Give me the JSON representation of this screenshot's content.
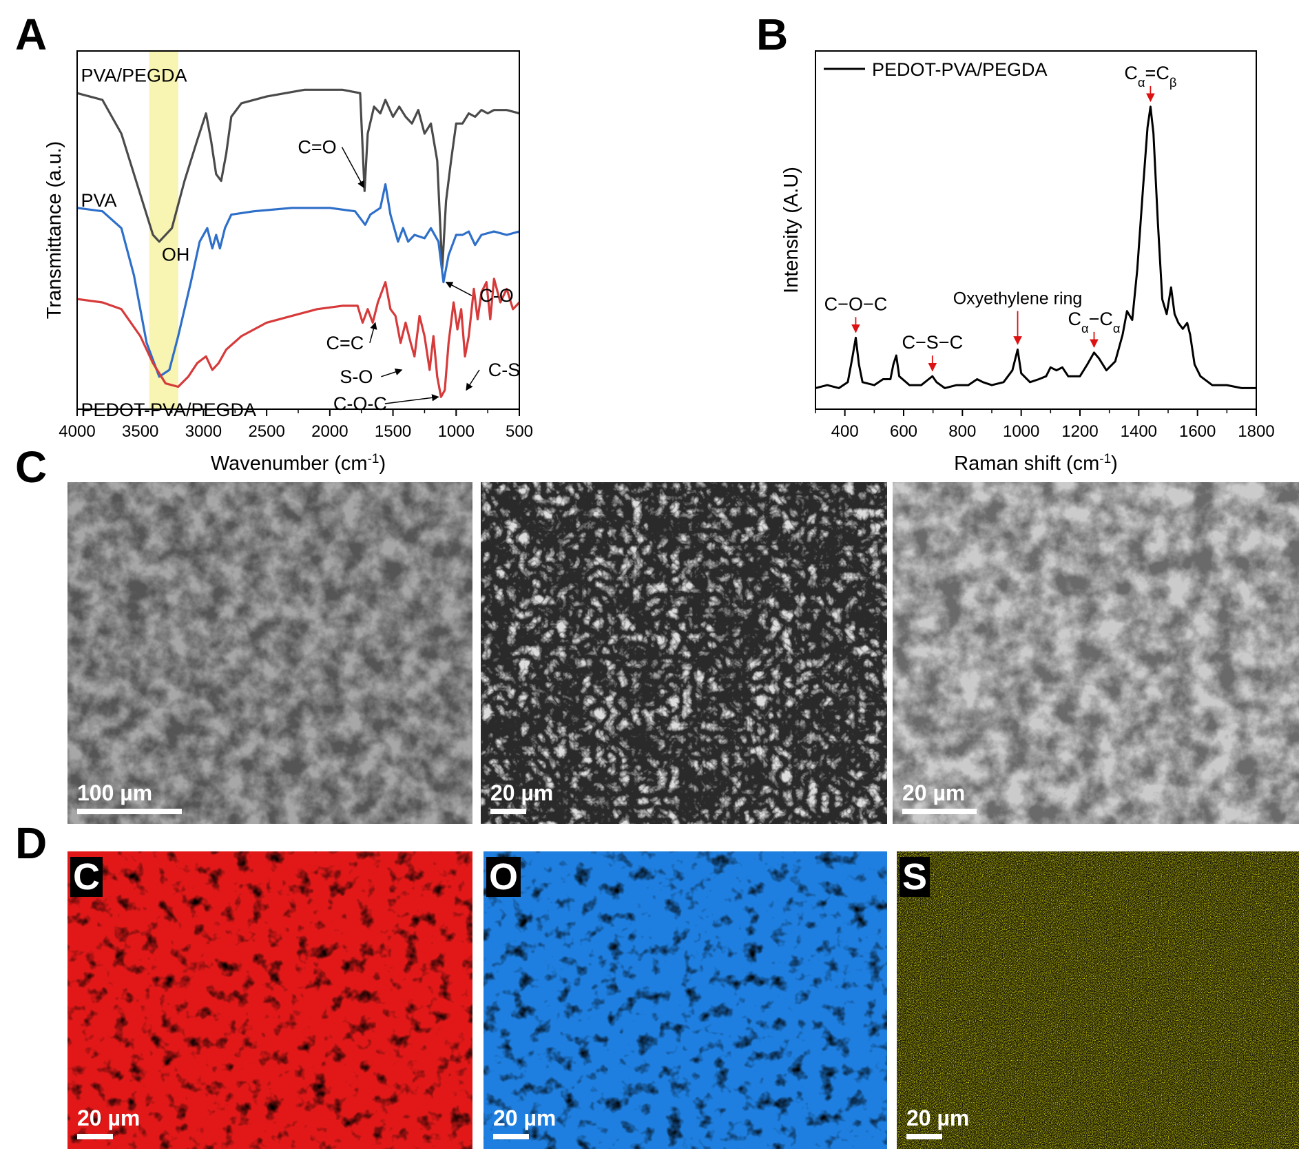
{
  "panels": {
    "a": "A",
    "b": "B",
    "c": "C",
    "d": "D"
  },
  "chart_data": [
    {
      "panel": "A",
      "type": "line",
      "xlabel": "Wavenumber (cm⁻¹)",
      "ylabel": "Transmittance (a.u.)",
      "xlim": [
        4000,
        500
      ],
      "x_reversed": true,
      "xticks": [
        4000,
        3500,
        3000,
        2500,
        2000,
        1500,
        1000,
        500
      ],
      "highlight_band": [
        3430,
        3200
      ],
      "highlight_color": "#f7f3a8",
      "series": [
        {
          "name": "PVA/PEGDA",
          "color": "#4a4a4a",
          "points": [
            [
              4000,
              0.92
            ],
            [
              3800,
              0.9
            ],
            [
              3650,
              0.8
            ],
            [
              3500,
              0.62
            ],
            [
              3400,
              0.5
            ],
            [
              3350,
              0.48
            ],
            [
              3250,
              0.52
            ],
            [
              3150,
              0.66
            ],
            [
              3050,
              0.78
            ],
            [
              2980,
              0.86
            ],
            [
              2940,
              0.78
            ],
            [
              2900,
              0.68
            ],
            [
              2860,
              0.66
            ],
            [
              2820,
              0.74
            ],
            [
              2780,
              0.85
            ],
            [
              2700,
              0.89
            ],
            [
              2500,
              0.91
            ],
            [
              2200,
              0.93
            ],
            [
              1900,
              0.93
            ],
            [
              1760,
              0.92
            ],
            [
              1725,
              0.63
            ],
            [
              1700,
              0.8
            ],
            [
              1650,
              0.88
            ],
            [
              1600,
              0.86
            ],
            [
              1560,
              0.9
            ],
            [
              1500,
              0.85
            ],
            [
              1450,
              0.88
            ],
            [
              1400,
              0.85
            ],
            [
              1350,
              0.83
            ],
            [
              1300,
              0.87
            ],
            [
              1250,
              0.8
            ],
            [
              1200,
              0.83
            ],
            [
              1150,
              0.72
            ],
            [
              1110,
              0.4
            ],
            [
              1080,
              0.6
            ],
            [
              1040,
              0.72
            ],
            [
              1000,
              0.83
            ],
            [
              950,
              0.83
            ],
            [
              900,
              0.86
            ],
            [
              850,
              0.85
            ],
            [
              800,
              0.87
            ],
            [
              750,
              0.86
            ],
            [
              700,
              0.87
            ],
            [
              600,
              0.87
            ],
            [
              500,
              0.86
            ]
          ]
        },
        {
          "name": "PVA",
          "color": "#2e6fc9",
          "points": [
            [
              4000,
              0.58
            ],
            [
              3800,
              0.57
            ],
            [
              3650,
              0.52
            ],
            [
              3550,
              0.38
            ],
            [
              3450,
              0.18
            ],
            [
              3350,
              0.08
            ],
            [
              3270,
              0.1
            ],
            [
              3200,
              0.2
            ],
            [
              3100,
              0.36
            ],
            [
              3030,
              0.48
            ],
            [
              2970,
              0.52
            ],
            [
              2930,
              0.46
            ],
            [
              2900,
              0.5
            ],
            [
              2870,
              0.46
            ],
            [
              2830,
              0.52
            ],
            [
              2780,
              0.56
            ],
            [
              2600,
              0.57
            ],
            [
              2300,
              0.58
            ],
            [
              2000,
              0.58
            ],
            [
              1800,
              0.57
            ],
            [
              1720,
              0.53
            ],
            [
              1680,
              0.56
            ],
            [
              1600,
              0.58
            ],
            [
              1560,
              0.65
            ],
            [
              1520,
              0.56
            ],
            [
              1460,
              0.48
            ],
            [
              1420,
              0.52
            ],
            [
              1380,
              0.48
            ],
            [
              1330,
              0.5
            ],
            [
              1250,
              0.49
            ],
            [
              1200,
              0.52
            ],
            [
              1140,
              0.48
            ],
            [
              1100,
              0.36
            ],
            [
              1060,
              0.44
            ],
            [
              1000,
              0.5
            ],
            [
              950,
              0.5
            ],
            [
              900,
              0.51
            ],
            [
              850,
              0.47
            ],
            [
              800,
              0.5
            ],
            [
              700,
              0.51
            ],
            [
              600,
              0.5
            ],
            [
              500,
              0.51
            ]
          ]
        },
        {
          "name": "PEDOT-PVA/PEGDA",
          "color": "#d63a3a",
          "points": [
            [
              4000,
              0.31
            ],
            [
              3800,
              0.3
            ],
            [
              3650,
              0.28
            ],
            [
              3500,
              0.2
            ],
            [
              3400,
              0.12
            ],
            [
              3300,
              0.06
            ],
            [
              3200,
              0.05
            ],
            [
              3120,
              0.08
            ],
            [
              3050,
              0.12
            ],
            [
              2980,
              0.14
            ],
            [
              2930,
              0.1
            ],
            [
              2880,
              0.12
            ],
            [
              2820,
              0.16
            ],
            [
              2700,
              0.2
            ],
            [
              2500,
              0.24
            ],
            [
              2300,
              0.26
            ],
            [
              2100,
              0.28
            ],
            [
              1900,
              0.29
            ],
            [
              1780,
              0.29
            ],
            [
              1740,
              0.24
            ],
            [
              1700,
              0.28
            ],
            [
              1660,
              0.24
            ],
            [
              1620,
              0.3
            ],
            [
              1560,
              0.36
            ],
            [
              1520,
              0.28
            ],
            [
              1480,
              0.26
            ],
            [
              1440,
              0.18
            ],
            [
              1400,
              0.24
            ],
            [
              1360,
              0.18
            ],
            [
              1330,
              0.14
            ],
            [
              1290,
              0.26
            ],
            [
              1250,
              0.2
            ],
            [
              1210,
              0.1
            ],
            [
              1180,
              0.2
            ],
            [
              1150,
              0.08
            ],
            [
              1120,
              0.02
            ],
            [
              1090,
              0.04
            ],
            [
              1060,
              0.18
            ],
            [
              1020,
              0.3
            ],
            [
              990,
              0.22
            ],
            [
              960,
              0.28
            ],
            [
              930,
              0.14
            ],
            [
              900,
              0.2
            ],
            [
              860,
              0.34
            ],
            [
              830,
              0.25
            ],
            [
              800,
              0.33
            ],
            [
              760,
              0.36
            ],
            [
              730,
              0.25
            ],
            [
              700,
              0.37
            ],
            [
              650,
              0.3
            ],
            [
              600,
              0.34
            ],
            [
              550,
              0.28
            ],
            [
              500,
              0.3
            ]
          ]
        }
      ],
      "labels": [
        {
          "text": "PVA/PEGDA",
          "x": 3970,
          "y": 0.97
        },
        {
          "text": "PVA",
          "x": 3970,
          "y": 0.6
        },
        {
          "text": "PEDOT-PVA/PEGDA",
          "x": 3970,
          "y": -0.02
        },
        {
          "text": "OH",
          "x": 3330,
          "y": 0.44
        }
      ],
      "annotations": [
        {
          "text": "C=O",
          "text_x": 2100,
          "text_y": 0.76,
          "target_x": 1730,
          "target_y": 0.64
        },
        {
          "text": "C-O",
          "text_x": 680,
          "text_y": 0.32,
          "target_x": 1080,
          "target_y": 0.36
        },
        {
          "text": "C=C",
          "text_x": 1880,
          "text_y": 0.18,
          "target_x": 1640,
          "target_y": 0.24
        },
        {
          "text": "S-O",
          "text_x": 1790,
          "text_y": 0.08,
          "target_x": 1430,
          "target_y": 0.1
        },
        {
          "text": "C-O-C",
          "text_x": 1760,
          "text_y": 0.0,
          "target_x": 1140,
          "target_y": 0.02
        },
        {
          "text": "C-S",
          "text_x": 620,
          "text_y": 0.1,
          "target_x": 920,
          "target_y": 0.04
        }
      ]
    },
    {
      "panel": "B",
      "type": "line",
      "xlabel": "Raman shift (cm⁻¹)",
      "ylabel": "Intensity (A.U)",
      "xlim": [
        300,
        1800
      ],
      "xticks": [
        400,
        600,
        800,
        1000,
        1200,
        1400,
        1600,
        1800
      ],
      "ylim": [
        0,
        1
      ],
      "legend_position": "top-left",
      "series": [
        {
          "name": "PEDOT-PVA/PEGDA",
          "color": "#000000",
          "points": [
            [
              300,
              0.02
            ],
            [
              340,
              0.03
            ],
            [
              380,
              0.02
            ],
            [
              410,
              0.04
            ],
            [
              425,
              0.12
            ],
            [
              437,
              0.19
            ],
            [
              448,
              0.1
            ],
            [
              460,
              0.04
            ],
            [
              500,
              0.03
            ],
            [
              530,
              0.05
            ],
            [
              555,
              0.05
            ],
            [
              565,
              0.1
            ],
            [
              575,
              0.13
            ],
            [
              585,
              0.06
            ],
            [
              620,
              0.03
            ],
            [
              660,
              0.03
            ],
            [
              685,
              0.05
            ],
            [
              698,
              0.06
            ],
            [
              712,
              0.04
            ],
            [
              740,
              0.02
            ],
            [
              780,
              0.03
            ],
            [
              820,
              0.03
            ],
            [
              850,
              0.05
            ],
            [
              870,
              0.04
            ],
            [
              900,
              0.03
            ],
            [
              940,
              0.04
            ],
            [
              970,
              0.08
            ],
            [
              988,
              0.15
            ],
            [
              1000,
              0.07
            ],
            [
              1030,
              0.04
            ],
            [
              1060,
              0.05
            ],
            [
              1085,
              0.06
            ],
            [
              1100,
              0.09
            ],
            [
              1120,
              0.08
            ],
            [
              1140,
              0.09
            ],
            [
              1160,
              0.06
            ],
            [
              1200,
              0.06
            ],
            [
              1225,
              0.1
            ],
            [
              1248,
              0.14
            ],
            [
              1265,
              0.12
            ],
            [
              1290,
              0.08
            ],
            [
              1320,
              0.11
            ],
            [
              1345,
              0.2
            ],
            [
              1360,
              0.28
            ],
            [
              1378,
              0.25
            ],
            [
              1395,
              0.42
            ],
            [
              1415,
              0.7
            ],
            [
              1430,
              0.9
            ],
            [
              1440,
              0.97
            ],
            [
              1450,
              0.88
            ],
            [
              1465,
              0.58
            ],
            [
              1480,
              0.32
            ],
            [
              1495,
              0.27
            ],
            [
              1510,
              0.36
            ],
            [
              1522,
              0.27
            ],
            [
              1535,
              0.24
            ],
            [
              1550,
              0.22
            ],
            [
              1565,
              0.24
            ],
            [
              1575,
              0.2
            ],
            [
              1590,
              0.1
            ],
            [
              1610,
              0.06
            ],
            [
              1650,
              0.03
            ],
            [
              1700,
              0.03
            ],
            [
              1750,
              0.02
            ],
            [
              1800,
              0.02
            ]
          ]
        }
      ],
      "annotations": [
        {
          "text": "C−O−C",
          "x": 437,
          "y": 0.19
        },
        {
          "text": "C−S−C",
          "x": 698,
          "y": 0.06
        },
        {
          "text": "Oxyethylene ring",
          "x": 988,
          "y": 0.15
        },
        {
          "text": "Cα−Cα",
          "x": 1248,
          "y": 0.14
        },
        {
          "text": "Cα=Cβ",
          "x": 1440,
          "y": 0.97
        }
      ]
    }
  ],
  "sem_images": [
    {
      "scale": "100 µm"
    },
    {
      "scale": "20 µm"
    },
    {
      "scale": "20 µm"
    }
  ],
  "eds_maps": [
    {
      "element": "C",
      "scale": "20 µm",
      "color": "#e21818"
    },
    {
      "element": "O",
      "scale": "20 µm",
      "color": "#1e7fe0"
    },
    {
      "element": "S",
      "scale": "20 µm",
      "color": "#d4d200"
    }
  ]
}
